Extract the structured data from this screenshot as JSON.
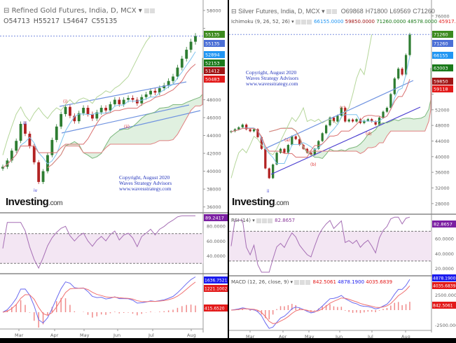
{
  "chart_data": [
    {
      "type": "candlestick",
      "title": "Refined Gold Futures, India, D, MCX",
      "ohlc": {
        "open": "O54713",
        "high": "H55217",
        "low": "L54647",
        "close": "C55135"
      },
      "x_ticks": [
        "Mar",
        "Apr",
        "May",
        "Jun",
        "Jul",
        "Aug"
      ],
      "ylim": [
        35500,
        58700
      ],
      "y_ticks": [
        58000,
        56000,
        48000,
        46000,
        44000,
        42000,
        40000,
        38000,
        36000
      ],
      "closes": [
        40500,
        41200,
        42300,
        43400,
        45300,
        44200,
        42800,
        41000,
        38800,
        40000,
        41800,
        43500,
        45000,
        46400,
        47200,
        46200,
        45600,
        46500,
        47100,
        46400,
        45900,
        46600,
        47100,
        46800,
        47500,
        48000,
        47500,
        48000,
        48200,
        48000,
        47600,
        48300,
        48600,
        49000,
        48800,
        49300,
        49600,
        50100,
        50600,
        51600,
        52600,
        53600,
        54500,
        55135
      ],
      "price_labels": [
        {
          "text": "55135",
          "color": "#3c8a1e"
        },
        {
          "text": "55135",
          "color": "#4b6fd6"
        },
        {
          "text": "52894",
          "color": "#2196f3"
        },
        {
          "text": "52153",
          "color": "#1b7a1b"
        },
        {
          "text": "51412",
          "color": "#a01515"
        },
        {
          "text": "50483",
          "color": "#e31a1a"
        }
      ],
      "wave_labels": [
        "(i)",
        "(ii)",
        "iii",
        "iv"
      ],
      "copyright": [
        "Copyright, August 2020",
        "Waves Strategy Advisors",
        "www.wavesstrategy.com"
      ],
      "logo": "Investing.com",
      "rsi": {
        "label": "",
        "last": "89.2417",
        "ylim": [
          17,
          97
        ],
        "ticks": [
          "80.0000",
          "60.0000",
          "40.0000"
        ],
        "bands": [
          70,
          30
        ]
      },
      "macd": {
        "label": "",
        "values": [
          "1636.7521",
          "1221.1002",
          "415.6520"
        ],
        "ticks": [
          "1000.0000",
          "0.0000"
        ]
      }
    },
    {
      "type": "candlestick",
      "title": "Silver Futures, India, D, MCX",
      "ohlc": {
        "open": "O69868",
        "high": "H71800",
        "low": "L69569",
        "close": "C71260"
      },
      "ichimoku": {
        "label": "Ichimoku (9, 26, 52, 26)",
        "values": [
          "66155.0000",
          "59850.0000",
          "71260.0000",
          "48578.0000",
          "45917.5000"
        ],
        "colors": [
          "#2196f3",
          "#a01515",
          "#1b7a1b",
          "#1b7a1b",
          "#e31a1a"
        ]
      },
      "x_ticks": [
        "Mar",
        "Apr",
        "May",
        "Jun",
        "Jul",
        "Aug"
      ],
      "ylim": [
        26000,
        79000
      ],
      "y_ticks": [
        76000,
        56000,
        52000,
        48000,
        44000,
        40000,
        36000,
        32000,
        28000
      ],
      "closes": [
        46500,
        47000,
        47500,
        48200,
        47000,
        46500,
        47000,
        45000,
        42000,
        37000,
        34500,
        38000,
        41000,
        42000,
        41000,
        43000,
        45200,
        44500,
        43000,
        42000,
        41000,
        40500,
        42000,
        44000,
        46000,
        48000,
        50000,
        49000,
        50500,
        52500,
        49000,
        49500,
        49000,
        49600,
        48600,
        49200,
        49600,
        49000,
        48200,
        50000,
        51500,
        52500,
        56000,
        60000,
        62500,
        61000,
        66000,
        71260
      ],
      "price_labels": [
        {
          "text": "71260",
          "color": "#3c8a1e"
        },
        {
          "text": "71260",
          "color": "#4b6fd6"
        },
        {
          "text": "66155",
          "color": "#2196f3"
        },
        {
          "text": "63003",
          "color": "#1b7a1b"
        },
        {
          "text": "59850",
          "color": "#a01515"
        },
        {
          "text": "59118",
          "color": "#e31a1a"
        }
      ],
      "wave_labels": [
        "(a)",
        "(b)",
        "(c)",
        "(d)",
        "ii"
      ],
      "copyright": [
        "Copyright, August 2020",
        "Waves Strategy Advisors",
        "www.wavesstrategy.com"
      ],
      "logo": "Investing.com",
      "rsi": {
        "label": "RSI (14)",
        "last": "82.8657",
        "ylim": [
          12,
          92
        ],
        "ticks": [
          "60.0000",
          "40.0000",
          "20.0000"
        ],
        "bands": [
          70,
          30
        ]
      },
      "macd": {
        "label": "MACD (12, 26, close, 9)",
        "values": [
          "842.5061",
          "4878.1900",
          "4035.6839"
        ],
        "badge_values": [
          "4878.1900",
          "4035.6839",
          "842.5061"
        ],
        "ticks": [
          "2500.0000",
          "0.0000",
          "-2500.0000"
        ]
      }
    }
  ]
}
